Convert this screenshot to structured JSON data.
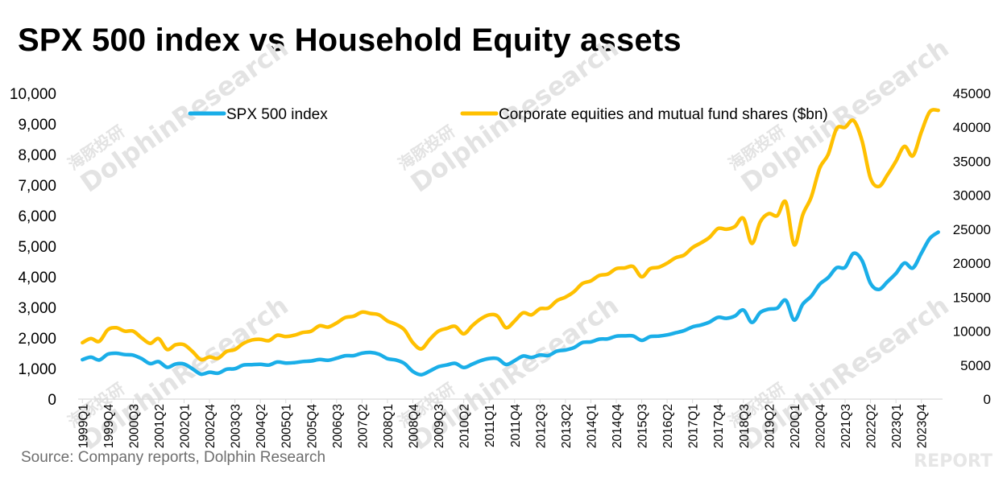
{
  "title": "SPX 500 index vs Household Equity assets",
  "source": "Source: Company reports, Dolphin Research",
  "watermark": {
    "text": "DolphinResearch",
    "cn": "海豚投研",
    "corner": "REPORT"
  },
  "colors": {
    "spx": "#1aaee8",
    "equity": "#ffc000",
    "axis": "#d9d9d9",
    "text": "#000000"
  },
  "chart_data": {
    "type": "line",
    "title": "SPX 500 index vs Household Equity assets",
    "x": [
      "1999Q1",
      "1999Q2",
      "1999Q3",
      "1999Q4",
      "2000Q1",
      "2000Q2",
      "2000Q3",
      "2000Q4",
      "2001Q1",
      "2001Q2",
      "2001Q3",
      "2001Q4",
      "2002Q1",
      "2002Q2",
      "2002Q3",
      "2002Q4",
      "2003Q1",
      "2003Q2",
      "2003Q3",
      "2003Q4",
      "2004Q1",
      "2004Q2",
      "2004Q3",
      "2004Q4",
      "2005Q1",
      "2005Q2",
      "2005Q3",
      "2005Q4",
      "2006Q1",
      "2006Q2",
      "2006Q3",
      "2006Q4",
      "2007Q1",
      "2007Q2",
      "2007Q3",
      "2007Q4",
      "2008Q1",
      "2008Q2",
      "2008Q3",
      "2008Q4",
      "2009Q1",
      "2009Q2",
      "2009Q3",
      "2009Q4",
      "2010Q1",
      "2010Q2",
      "2010Q3",
      "2010Q4",
      "2011Q1",
      "2011Q2",
      "2011Q3",
      "2011Q4",
      "2012Q1",
      "2012Q2",
      "2012Q3",
      "2012Q4",
      "2013Q1",
      "2013Q2",
      "2013Q3",
      "2013Q4",
      "2014Q1",
      "2014Q2",
      "2014Q3",
      "2014Q4",
      "2015Q1",
      "2015Q2",
      "2015Q3",
      "2015Q4",
      "2016Q1",
      "2016Q2",
      "2016Q3",
      "2016Q4",
      "2017Q1",
      "2017Q2",
      "2017Q3",
      "2017Q4",
      "2018Q1",
      "2018Q2",
      "2018Q3",
      "2018Q4",
      "2019Q1",
      "2019Q2",
      "2019Q3",
      "2019Q4",
      "2020Q1",
      "2020Q2",
      "2020Q3",
      "2020Q4",
      "2021Q1",
      "2021Q2",
      "2021Q3",
      "2021Q4",
      "2022Q1",
      "2022Q2",
      "2022Q3",
      "2022Q4",
      "2023Q1",
      "2023Q2",
      "2023Q3",
      "2023Q4",
      "2024Q1",
      "2024Q2"
    ],
    "x_tick_labels": [
      "1999Q1",
      "1999Q4",
      "2000Q3",
      "2001Q2",
      "2002Q1",
      "2002Q4",
      "2003Q3",
      "2004Q2",
      "2005Q1",
      "2005Q4",
      "2006Q3",
      "2007Q2",
      "2008Q1",
      "2008Q4",
      "2009Q3",
      "2010Q2",
      "2011Q1",
      "2011Q4",
      "2012Q3",
      "2013Q2",
      "2014Q1",
      "2014Q4",
      "2015Q3",
      "2016Q2",
      "2017Q1",
      "2017Q4",
      "2018Q3",
      "2019Q2",
      "2020Q1",
      "2020Q4",
      "2021Q3",
      "2022Q2",
      "2023Q1",
      "2023Q4"
    ],
    "series": [
      {
        "name": "SPX 500 index",
        "axis": "left",
        "values": [
          1290,
          1370,
          1280,
          1469,
          1499,
          1455,
          1436,
          1320,
          1160,
          1224,
          1040,
          1148,
          1147,
          990,
          815,
          880,
          848,
          975,
          995,
          1112,
          1126,
          1140,
          1114,
          1212,
          1180,
          1191,
          1229,
          1248,
          1295,
          1270,
          1336,
          1418,
          1421,
          1503,
          1527,
          1468,
          1322,
          1280,
          1166,
          903,
          797,
          919,
          1057,
          1115,
          1169,
          1031,
          1141,
          1258,
          1326,
          1321,
          1131,
          1258,
          1408,
          1362,
          1441,
          1426,
          1569,
          1606,
          1682,
          1848,
          1872,
          1960,
          1972,
          2059,
          2068,
          2063,
          1920,
          2044,
          2060,
          2099,
          2168,
          2239,
          2363,
          2423,
          2519,
          2674,
          2641,
          2718,
          2914,
          2507,
          2834,
          2942,
          2977,
          3231,
          2585,
          3100,
          3363,
          3756,
          3973,
          4298,
          4308,
          4766,
          4530,
          3785,
          3586,
          3840,
          4109,
          4450,
          4288,
          4770,
          5254,
          5460
        ]
      },
      {
        "name": "Corporate equities and mutual fund shares  ($bn)",
        "axis": "right",
        "values": [
          8300,
          8900,
          8500,
          10200,
          10500,
          10000,
          10000,
          9000,
          8200,
          8900,
          7300,
          8000,
          8000,
          7000,
          5800,
          6200,
          6000,
          7000,
          7300,
          8200,
          8700,
          8800,
          8600,
          9400,
          9200,
          9400,
          9800,
          10000,
          10800,
          10600,
          11200,
          12000,
          12200,
          12800,
          12600,
          12400,
          11500,
          11000,
          10200,
          8300,
          7400,
          8800,
          10000,
          10400,
          10700,
          9600,
          10800,
          11800,
          12400,
          12200,
          10500,
          11500,
          12700,
          12400,
          13300,
          13400,
          14500,
          15000,
          15800,
          17000,
          17400,
          18200,
          18400,
          19200,
          19300,
          19500,
          18000,
          19200,
          19400,
          20000,
          20800,
          21200,
          22300,
          23000,
          23800,
          25100,
          25000,
          25400,
          26600,
          22900,
          26100,
          27300,
          27000,
          29000,
          22700,
          27100,
          29700,
          34000,
          36000,
          39800,
          40000,
          41000,
          38000,
          32500,
          31300,
          33000,
          35000,
          37200,
          35800,
          39300,
          42300,
          42500
        ]
      }
    ],
    "ylim_left": [
      0,
      10000
    ],
    "yticks_left": [
      "0",
      "1,000",
      "2,000",
      "3,000",
      "4,000",
      "5,000",
      "6,000",
      "7,000",
      "8,000",
      "9,000",
      "10,000"
    ],
    "ylim_right": [
      0,
      45000
    ],
    "yticks_right": [
      "0",
      "5000",
      "10000",
      "15000",
      "20000",
      "25000",
      "30000",
      "35000",
      "40000",
      "45000"
    ],
    "legend_position": "top",
    "grid": false
  }
}
